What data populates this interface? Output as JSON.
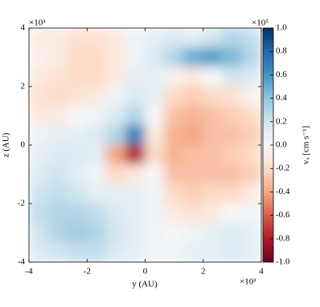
{
  "chart_data": {
    "type": "heatmap",
    "x_label": "y  (AU)",
    "y_label": "z  (AU)",
    "x_multiplier": "×10³",
    "y_multiplier": "×10³",
    "colorbar_multiplier": "×10⁵",
    "colorbar_label": "vₓ  [cm s⁻¹]",
    "xlim": [
      -4,
      4
    ],
    "ylim": [
      -4,
      4
    ],
    "xticks": [
      -4,
      -2,
      0,
      2,
      4
    ],
    "yticks": [
      -4,
      -2,
      0,
      2,
      4
    ],
    "clim": [
      -1,
      1
    ],
    "cticks": [
      {
        "value": -1,
        "label": "-1.0"
      },
      -0.8,
      -0.6,
      -0.4,
      -0.2,
      {
        "value": 0,
        "label": "0.0"
      },
      0.2,
      0.4,
      0.6,
      0.8,
      {
        "value": 1,
        "label": "1.0"
      }
    ],
    "colormap": [
      "#67001f",
      "#b2182b",
      "#d6604d",
      "#f4a582",
      "#fddbc7",
      "#f7f7f7",
      "#d1e5f0",
      "#92c5de",
      "#4393c3",
      "#2166ac",
      "#053061"
    ],
    "z": [
      [
        -0.1,
        -0.1,
        -0.15,
        -0.15,
        -0.1,
        0.05,
        0.1,
        0.15,
        0.1,
        0.2,
        0.3,
        0.25
      ],
      [
        -0.05,
        -0.1,
        -0.2,
        -0.2,
        -0.1,
        0.05,
        0.15,
        0.3,
        0.5,
        0.55,
        0.45,
        0.3
      ],
      [
        -0.1,
        -0.15,
        -0.2,
        -0.2,
        -0.1,
        0.1,
        0.1,
        -0.05,
        -0.1,
        0.0,
        0.2,
        0.15
      ],
      [
        -0.15,
        -0.2,
        -0.15,
        -0.1,
        0.05,
        0.15,
        0.1,
        -0.2,
        -0.25,
        -0.2,
        -0.15,
        -0.05
      ],
      [
        -0.1,
        -0.1,
        0.0,
        0.05,
        0.15,
        0.3,
        0.0,
        -0.3,
        -0.35,
        -0.3,
        -0.25,
        -0.2
      ],
      [
        0.05,
        0.1,
        0.1,
        0.15,
        0.3,
        0.7,
        -0.1,
        -0.35,
        -0.4,
        -0.3,
        -0.3,
        -0.25
      ],
      [
        0.1,
        0.15,
        0.15,
        0.1,
        -0.4,
        -0.8,
        -0.2,
        -0.35,
        -0.3,
        -0.3,
        -0.25,
        -0.2
      ],
      [
        0.15,
        0.2,
        0.1,
        0.05,
        -0.2,
        -0.1,
        0.0,
        -0.3,
        -0.3,
        -0.3,
        -0.3,
        -0.25
      ],
      [
        0.2,
        0.25,
        0.2,
        0.1,
        0.1,
        0.1,
        0.05,
        -0.2,
        -0.25,
        -0.2,
        -0.2,
        -0.1
      ],
      [
        0.25,
        0.3,
        0.3,
        0.25,
        0.15,
        0.1,
        0.05,
        -0.1,
        -0.15,
        -0.1,
        0.0,
        0.05
      ],
      [
        0.2,
        0.3,
        0.35,
        0.3,
        0.2,
        0.1,
        0.05,
        0.0,
        0.05,
        0.1,
        0.15,
        0.1
      ],
      [
        0.15,
        0.2,
        0.25,
        0.25,
        0.15,
        0.1,
        0.05,
        0.05,
        0.1,
        0.1,
        0.15,
        0.1
      ]
    ]
  }
}
